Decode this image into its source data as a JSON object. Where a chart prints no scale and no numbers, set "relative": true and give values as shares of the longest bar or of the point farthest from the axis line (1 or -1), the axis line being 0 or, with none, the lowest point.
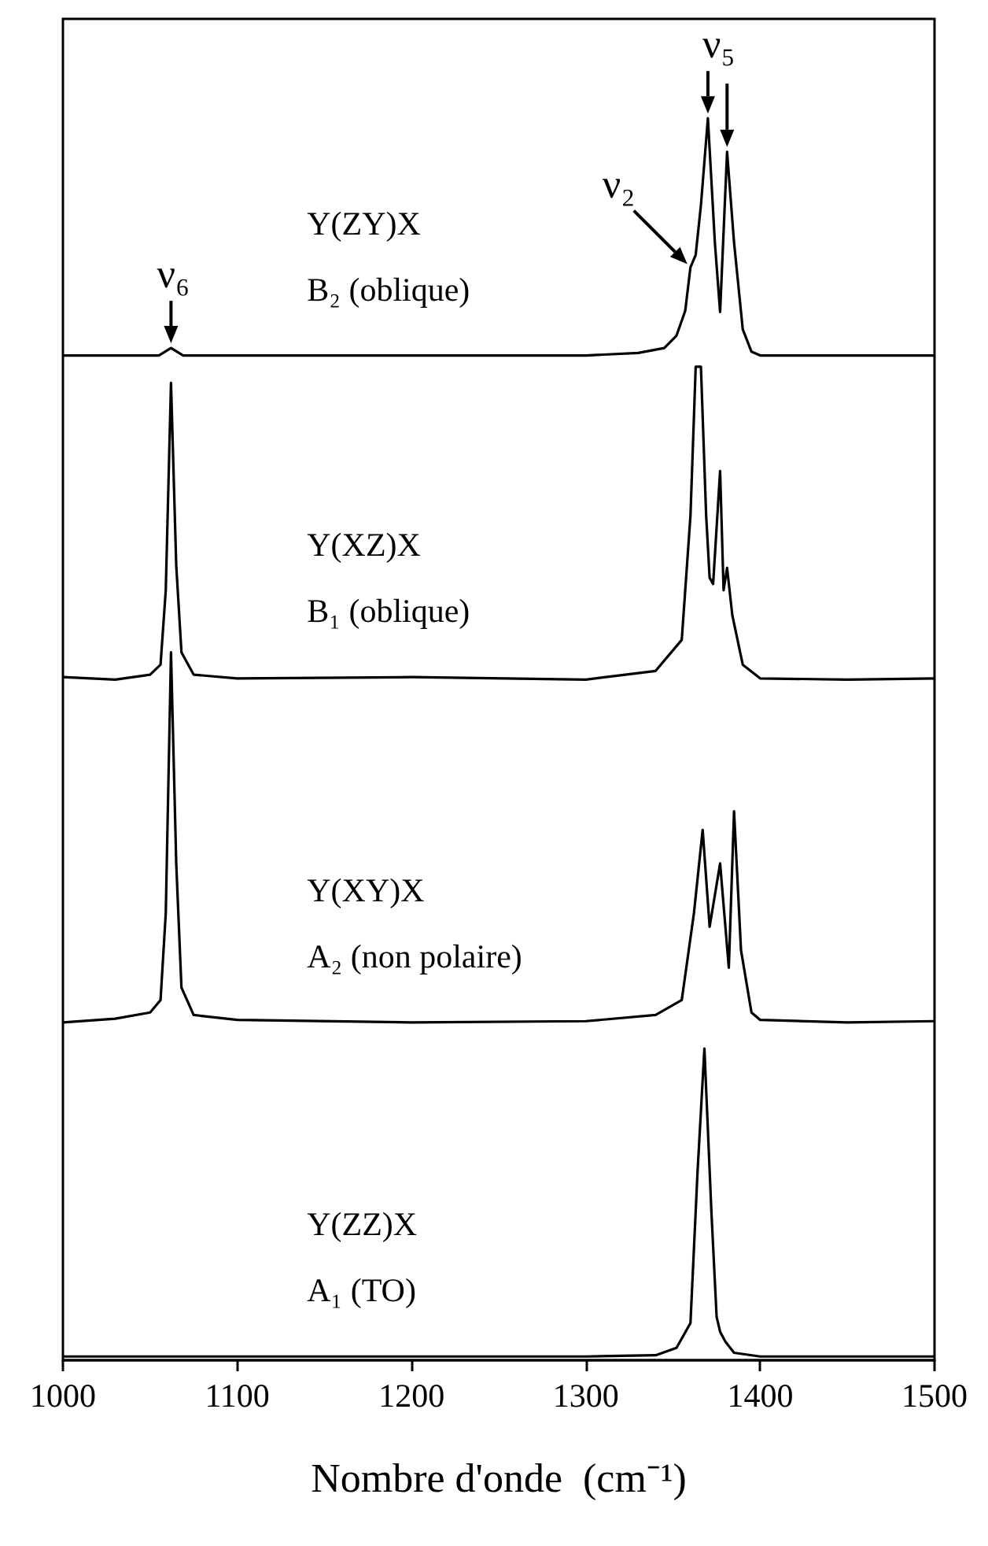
{
  "chart_data": {
    "type": "line",
    "relative": true,
    "xlabel": "Nombre d'onde  (cm⁻¹)",
    "xlim": [
      1000,
      1500
    ],
    "xticks": [
      1000,
      1100,
      1200,
      1300,
      1400,
      1500
    ],
    "legend": false,
    "grid": false,
    "marker": "none",
    "series": [
      {
        "name": "Y(ZY)X\nB₂ (oblique)",
        "color": "#000000",
        "x": [
          1000,
          1040,
          1055,
          1062,
          1069,
          1100,
          1200,
          1300,
          1330,
          1345,
          1352,
          1357,
          1360,
          1363,
          1366,
          1370,
          1374,
          1377,
          1381,
          1385,
          1390,
          1395,
          1400,
          1450,
          1500
        ],
        "values": [
          0.809,
          0.809,
          0.809,
          0.815,
          0.809,
          0.809,
          0.809,
          0.809,
          0.811,
          0.815,
          0.825,
          0.845,
          0.88,
          0.89,
          0.93,
          1.0,
          0.9,
          0.844,
          0.973,
          0.9,
          0.83,
          0.812,
          0.809,
          0.809,
          0.809
        ]
      },
      {
        "name": "Y(XZ)X\nB₁ (oblique)",
        "color": "#000000",
        "x": [
          1000,
          1030,
          1050,
          1056,
          1059,
          1062,
          1065,
          1068,
          1075,
          1100,
          1200,
          1300,
          1340,
          1355,
          1360,
          1363,
          1366,
          1369,
          1371,
          1373,
          1377,
          1379,
          1381,
          1384,
          1390,
          1400,
          1450,
          1500
        ],
        "values": [
          0.55,
          0.548,
          0.552,
          0.56,
          0.62,
          0.787,
          0.64,
          0.57,
          0.552,
          0.549,
          0.55,
          0.548,
          0.555,
          0.58,
          0.68,
          0.8,
          0.8,
          0.68,
          0.63,
          0.625,
          0.716,
          0.62,
          0.638,
          0.6,
          0.56,
          0.549,
          0.548,
          0.549
        ]
      },
      {
        "name": "Y(XY)X\nA₂ (non polaire)",
        "color": "#000000",
        "x": [
          1000,
          1030,
          1050,
          1056,
          1059,
          1062,
          1065,
          1068,
          1075,
          1100,
          1200,
          1300,
          1340,
          1355,
          1362,
          1367,
          1371,
          1377,
          1382,
          1385,
          1389,
          1395,
          1400,
          1450,
          1500
        ],
        "values": [
          0.272,
          0.275,
          0.28,
          0.29,
          0.36,
          0.57,
          0.4,
          0.3,
          0.278,
          0.274,
          0.272,
          0.273,
          0.278,
          0.29,
          0.36,
          0.427,
          0.349,
          0.4,
          0.316,
          0.442,
          0.33,
          0.28,
          0.274,
          0.272,
          0.273
        ]
      },
      {
        "name": "Y(ZZ)X\nA₁ (TO)",
        "color": "#000000",
        "x": [
          1000,
          1200,
          1300,
          1340,
          1352,
          1360,
          1364,
          1368,
          1372,
          1375,
          1377,
          1380,
          1385,
          1400,
          1500
        ],
        "values": [
          0.003,
          0.003,
          0.003,
          0.004,
          0.01,
          0.03,
          0.15,
          0.251,
          0.12,
          0.035,
          0.023,
          0.015,
          0.006,
          0.003,
          0.003
        ]
      }
    ],
    "annotations": [
      {
        "text": "ν₆",
        "x": 1062,
        "y": 0.815
      },
      {
        "text": "ν₂",
        "x": 1360,
        "y": 0.88
      },
      {
        "text": "ν₅",
        "x": 1375,
        "y": 1.0
      }
    ]
  }
}
